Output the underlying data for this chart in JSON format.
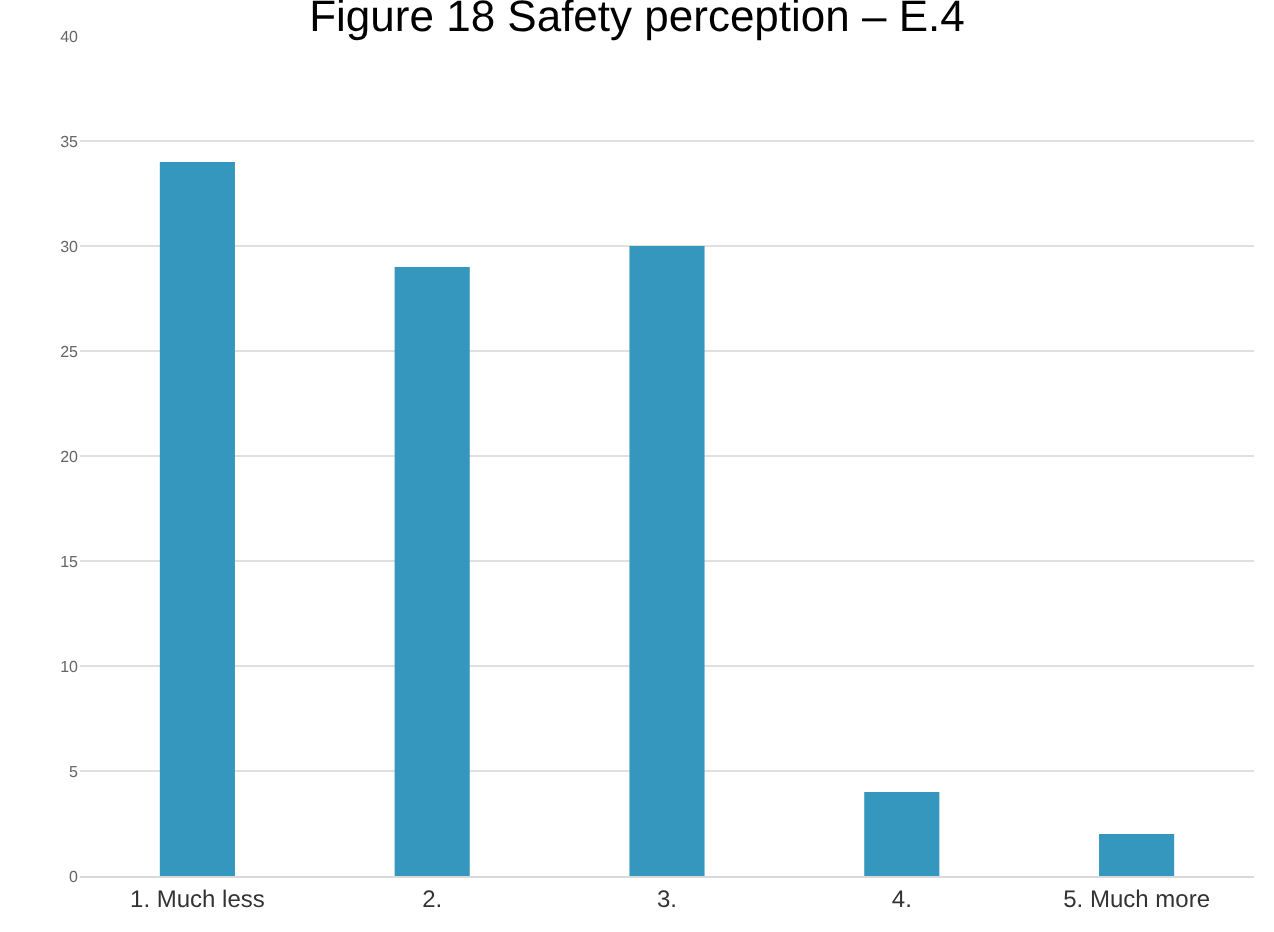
{
  "chart_data": {
    "type": "bar",
    "title": "Figure 18 Safety perception – E.4",
    "categories": [
      "1. Much less",
      "2.",
      "3.",
      "4.",
      "5. Much more"
    ],
    "values": [
      34,
      29,
      30,
      4,
      2
    ],
    "color": "#3596be",
    "ylim": [
      0,
      40
    ],
    "yticks": [
      0,
      5,
      10,
      15,
      20,
      25,
      30,
      35,
      40
    ],
    "grid": "y"
  }
}
